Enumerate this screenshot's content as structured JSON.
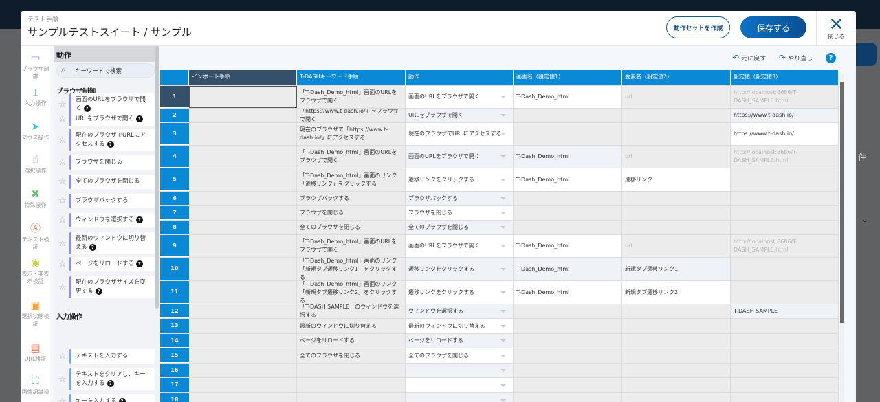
{
  "header": {
    "subtitle": "テスト手順",
    "title": "サンプルテストスイート / サンプル",
    "create_set": "動作セットを作成",
    "save": "保存する",
    "close": "閉じる"
  },
  "background": {
    "fragment": "件"
  },
  "categories": [
    {
      "label": "ブラウザ制御",
      "icon": "browser-icon",
      "glyph": "▭",
      "color": "#8d8ff0"
    },
    {
      "label": "入力操作",
      "icon": "text-input-icon",
      "glyph": "⌶",
      "color": "#5b8fe6"
    },
    {
      "label": "マウス操作",
      "icon": "mouse-pointer-icon",
      "glyph": "➤",
      "color": "#4cc3d9"
    },
    {
      "label": "選択操作",
      "icon": "hand-pointer-icon",
      "glyph": "☝",
      "color": "#5cc36a"
    },
    {
      "label": "特殊操作",
      "icon": "tools-icon",
      "glyph": "✖",
      "color": "#5cc36a"
    },
    {
      "label": "テキスト検証",
      "icon": "text-verify-icon",
      "glyph": "Ⓐ",
      "color": "#e8866b"
    },
    {
      "label": "表示・非表示検証",
      "icon": "visibility-icon",
      "glyph": "◉",
      "color": "#c8d43a"
    },
    {
      "label": "選択状態検証",
      "icon": "selection-verify-icon",
      "glyph": "▣",
      "color": "#f0a43a"
    },
    {
      "label": "URL検証",
      "icon": "http-icon",
      "glyph": "▤",
      "color": "#f0785a"
    },
    {
      "label": "画像認識操",
      "icon": "image-recognition-icon",
      "glyph": "⛶",
      "color": "#3ab0d9"
    }
  ],
  "panel": {
    "title": "動作",
    "search_placeholder": "キーワードで検索",
    "groups": [
      {
        "label": "ブラウザ制御",
        "items": [
          {
            "label": "画面のURLをブラウザで開く",
            "help": true
          },
          {
            "label": "URLをブラウザで開く",
            "help": true
          },
          {
            "label": "現在のブラウザでURLにアクセスする",
            "help": true
          },
          {
            "label": "ブラウザを閉じる",
            "help": false
          },
          {
            "label": "全てのブラウザを閉じる",
            "help": false
          },
          {
            "label": "ブラウザバックする",
            "help": false
          },
          {
            "label": "ウィンドウを選択する",
            "help": true
          },
          {
            "label": "最新のウィンドウに切り替える",
            "help": true
          },
          {
            "label": "ページをリロードする",
            "help": true
          },
          {
            "label": "現在のブラウザサイズを変更する",
            "help": true
          }
        ]
      },
      {
        "label": "入力操作",
        "items": [
          {
            "label": "テキストを入力する",
            "help": false
          },
          {
            "label": "テキストをクリアし、キーを入力する",
            "help": true
          },
          {
            "label": "キーを入力する",
            "help": true
          }
        ]
      }
    ]
  },
  "toolbar": {
    "undo": "元に戻す",
    "redo": "やり直し",
    "help": "?"
  },
  "table": {
    "columns": [
      "",
      "インポート手順",
      "T-DASHキーワード手順",
      "動作",
      "画面名（設定値1）",
      "要素名（設定値2）",
      "設定値（設定値3）"
    ],
    "selected_row": 1,
    "rows": [
      {
        "n": "1",
        "import": "",
        "keyword": "「T-Dash_Demo_html」画面のURLをブラウザで開く",
        "action": "画面のURLをブラウザで開く",
        "screen": {
          "v": "T-Dash_Demo_html",
          "ed": true
        },
        "element": {
          "v": "url",
          "ed": false,
          "ph": true
        },
        "value": {
          "v": "http://localhost:8686/T-DASH_SAMPLE.html",
          "ed": false,
          "ph": true
        }
      },
      {
        "n": "2",
        "import": "",
        "keyword": "「https://www.t-dash.io/」をブラウザで開く",
        "action": "URLをブラウザで開く",
        "screen": {
          "v": "",
          "ed": false
        },
        "element": {
          "v": "",
          "ed": false
        },
        "value": {
          "v": "https://www.t-dash.io/",
          "ed": true
        }
      },
      {
        "n": "3",
        "import": "",
        "keyword": "現在のブラウザで「https://www.t-dash.io/」にアクセスする",
        "action": "現在のブラウザでURLにアクセスする",
        "screen": {
          "v": "",
          "ed": false
        },
        "element": {
          "v": "",
          "ed": false
        },
        "value": {
          "v": "https://www.t-dash.io/",
          "ed": true
        }
      },
      {
        "n": "4",
        "import": "",
        "keyword": "「T-Dash_Demo_html」画面のURLをブラウザで開く",
        "action": "画面のURLをブラウザで開く",
        "screen": {
          "v": "T-Dash_Demo_html",
          "ed": true
        },
        "element": {
          "v": "url",
          "ed": false,
          "ph": true
        },
        "value": {
          "v": "http://localhost:8686/T-DASH_SAMPLE.html",
          "ed": false,
          "ph": true
        }
      },
      {
        "n": "5",
        "import": "",
        "keyword": "「T-Dash_Demo_html」画面のリンク「遷移リンク」をクリックする",
        "action": "遷移リンクをクリックする",
        "screen": {
          "v": "T-Dash_Demo_html",
          "ed": true
        },
        "element": {
          "v": "遷移リンク",
          "ed": true
        },
        "value": {
          "v": "",
          "ed": false
        }
      },
      {
        "n": "6",
        "import": "",
        "keyword": "ブラウザバックする",
        "action": "ブラウザバックする",
        "screen": {
          "v": "",
          "ed": false
        },
        "element": {
          "v": "",
          "ed": false
        },
        "value": {
          "v": "",
          "ed": false
        }
      },
      {
        "n": "7",
        "import": "",
        "keyword": "ブラウザを閉じる",
        "action": "ブラウザを閉じる",
        "screen": {
          "v": "",
          "ed": false
        },
        "element": {
          "v": "",
          "ed": false
        },
        "value": {
          "v": "",
          "ed": false
        }
      },
      {
        "n": "8",
        "import": "",
        "keyword": "全てのブラウザを閉じる",
        "action": "全てのブラウザを閉じる",
        "screen": {
          "v": "",
          "ed": false
        },
        "element": {
          "v": "",
          "ed": false
        },
        "value": {
          "v": "",
          "ed": false
        }
      },
      {
        "n": "9",
        "import": "",
        "keyword": "「T-Dash_Demo_html」画面のURLをブラウザで開く",
        "action": "画面のURLをブラウザで開く",
        "screen": {
          "v": "T-Dash_Demo_html",
          "ed": true
        },
        "element": {
          "v": "url",
          "ed": false,
          "ph": true
        },
        "value": {
          "v": "http://localhost:8686/T-DASH_SAMPLE.html",
          "ed": false,
          "ph": true
        }
      },
      {
        "n": "10",
        "import": "",
        "keyword": "「T-Dash_Demo_html」画面のリンク「新規タブ遷移リンク1」をクリックする",
        "action": "遷移リンクをクリックする",
        "screen": {
          "v": "T-Dash_Demo_html",
          "ed": true
        },
        "element": {
          "v": "新規タブ遷移リンク1",
          "ed": true
        },
        "value": {
          "v": "",
          "ed": false
        }
      },
      {
        "n": "11",
        "import": "",
        "keyword": "「T-Dash_Demo_html」画面のリンク「新規タブ遷移リンク2」をクリックする",
        "action": "遷移リンクをクリックする",
        "screen": {
          "v": "T-Dash_Demo_html",
          "ed": true
        },
        "element": {
          "v": "新規タブ遷移リンク2",
          "ed": true
        },
        "value": {
          "v": "",
          "ed": false
        }
      },
      {
        "n": "12",
        "import": "",
        "keyword": "「T-DASH SAMPLE」のウィンドウを選択する",
        "action": "ウィンドウを選択する",
        "screen": {
          "v": "",
          "ed": false
        },
        "element": {
          "v": "",
          "ed": false
        },
        "value": {
          "v": "T-DASH SAMPLE",
          "ed": true
        }
      },
      {
        "n": "13",
        "import": "",
        "keyword": "最新のウィンドウに切り替える",
        "action": "最新のウィンドウに切り替える",
        "screen": {
          "v": "",
          "ed": false
        },
        "element": {
          "v": "",
          "ed": false
        },
        "value": {
          "v": "",
          "ed": false
        }
      },
      {
        "n": "14",
        "import": "",
        "keyword": "ページをリロードする",
        "action": "ページをリロードする",
        "screen": {
          "v": "",
          "ed": false
        },
        "element": {
          "v": "",
          "ed": false
        },
        "value": {
          "v": "",
          "ed": false
        }
      },
      {
        "n": "15",
        "import": "",
        "keyword": "全てのブラウザを閉じる",
        "action": "全てのブラウザを閉じる",
        "screen": {
          "v": "",
          "ed": false
        },
        "element": {
          "v": "",
          "ed": false
        },
        "value": {
          "v": "",
          "ed": false
        }
      },
      {
        "n": "16",
        "import": "",
        "keyword": "",
        "action": "",
        "screen": {
          "v": "",
          "ed": false
        },
        "element": {
          "v": "",
          "ed": false
        },
        "value": {
          "v": "",
          "ed": false
        }
      },
      {
        "n": "17",
        "import": "",
        "keyword": "",
        "action": "",
        "screen": {
          "v": "",
          "ed": false
        },
        "element": {
          "v": "",
          "ed": false
        },
        "value": {
          "v": "",
          "ed": false
        }
      },
      {
        "n": "18",
        "import": "",
        "keyword": "",
        "action": "",
        "screen": {
          "v": "",
          "ed": false
        },
        "element": {
          "v": "",
          "ed": false
        },
        "value": {
          "v": "",
          "ed": false
        }
      }
    ]
  }
}
